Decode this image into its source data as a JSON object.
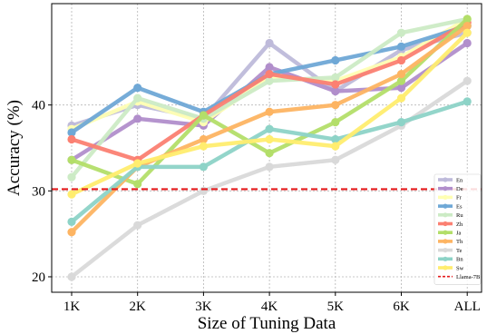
{
  "chart_data": {
    "type": "line",
    "title": "",
    "xlabel": "Size of Tuning Data",
    "ylabel": "Accuracy (%)",
    "categories": [
      "1K",
      "2K",
      "3K",
      "4K",
      "5K",
      "6K",
      "ALL"
    ],
    "ylim": [
      18.2,
      51.8
    ],
    "yticks": [
      20,
      30,
      40
    ],
    "grid": true,
    "legend_placement": "bottom-right",
    "series": [
      {
        "name": "En",
        "color": "#bebada",
        "values": [
          37.6,
          40.0,
          38.4,
          47.2,
          41.6,
          46.4,
          48.4
        ]
      },
      {
        "name": "De",
        "color": "#b18ecb",
        "values": [
          33.6,
          38.4,
          37.6,
          44.4,
          41.6,
          42.0,
          47.2
        ]
      },
      {
        "name": "Fr",
        "color": "#ffffb3",
        "values": [
          37.2,
          40.4,
          38.0,
          43.2,
          42.8,
          45.6,
          50.0
        ]
      },
      {
        "name": "Es",
        "color": "#6fa8d6",
        "values": [
          36.8,
          42.0,
          39.2,
          43.6,
          45.2,
          46.8,
          49.2
        ]
      },
      {
        "name": "Ru",
        "color": "#ccebc5",
        "values": [
          31.6,
          40.8,
          38.4,
          42.8,
          43.2,
          48.4,
          50.0
        ]
      },
      {
        "name": "Zh",
        "color": "#fb8072",
        "values": [
          36.0,
          33.6,
          38.8,
          43.6,
          42.4,
          45.2,
          49.6
        ]
      },
      {
        "name": "Ja",
        "color": "#b3de69",
        "values": [
          33.6,
          30.8,
          38.8,
          34.4,
          38.0,
          42.8,
          50.0
        ]
      },
      {
        "name": "Th",
        "color": "#fdb462",
        "values": [
          25.2,
          32.8,
          36.0,
          39.2,
          40.0,
          43.6,
          49.2
        ]
      },
      {
        "name": "Te",
        "color": "#d9d9d9",
        "values": [
          20.0,
          26.0,
          30.0,
          32.8,
          33.6,
          37.6,
          42.8
        ]
      },
      {
        "name": "Bn",
        "color": "#8dd3c7",
        "values": [
          26.4,
          32.8,
          32.8,
          37.2,
          36.0,
          38.0,
          40.4
        ]
      },
      {
        "name": "Sw",
        "color": "#ffed6f",
        "values": [
          29.6,
          33.2,
          35.2,
          36.0,
          35.2,
          40.8,
          48.4
        ]
      }
    ],
    "reference_line": {
      "name": "Llama-7B",
      "value": 30.2,
      "color": "#e41a1c",
      "style": "dashed"
    }
  }
}
